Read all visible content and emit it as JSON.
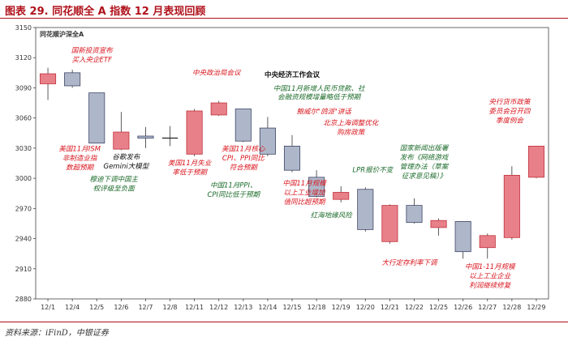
{
  "figure": {
    "title": "图表 29. 同花顺全 A 指数 12 月表现回顾",
    "source": "资料来源：iFinD，中银证券"
  },
  "colors": {
    "up_fill": "#e8808a",
    "up_stroke": "#c0303a",
    "down_fill": "#aeb7c9",
    "down_stroke": "#3d4566",
    "annotation_red": "#d9141c",
    "annotation_green": "#1b6b2a",
    "annotation_black": "#111111",
    "brand": "#b0121b"
  },
  "chart_data": {
    "type": "candlestick",
    "series_label": "同花顺沪深全A",
    "ylim": [
      2880,
      3150
    ],
    "yticks": [
      2880,
      2910,
      2940,
      2970,
      3000,
      3030,
      3060,
      3090,
      3120,
      3150
    ],
    "candles": [
      {
        "date": "12/1",
        "open": 3094,
        "close": 3104,
        "high": 3110,
        "low": 3078
      },
      {
        "date": "12/4",
        "open": 3105,
        "close": 3092,
        "high": 3108,
        "low": 3090
      },
      {
        "date": "12/5",
        "open": 3085,
        "close": 3035,
        "high": 3085,
        "low": 3035
      },
      {
        "date": "12/6",
        "open": 3029,
        "close": 3046,
        "high": 3066,
        "low": 3028
      },
      {
        "date": "12/7",
        "open": 3042,
        "close": 3040,
        "high": 3051,
        "low": 3030
      },
      {
        "date": "12/8",
        "open": 3040,
        "close": 3039,
        "high": 3052,
        "low": 3032
      },
      {
        "date": "12/11",
        "open": 3024,
        "close": 3067,
        "high": 3069,
        "low": 3022
      },
      {
        "date": "12/12",
        "open": 3063,
        "close": 3075,
        "high": 3077,
        "low": 3062
      },
      {
        "date": "12/13",
        "open": 3069,
        "close": 3037,
        "high": 3069,
        "low": 3036
      },
      {
        "date": "12/14",
        "open": 3050,
        "close": 3024,
        "high": 3061,
        "low": 3022
      },
      {
        "date": "12/15",
        "open": 3032,
        "close": 3008,
        "high": 3043,
        "low": 3006
      },
      {
        "date": "12/18",
        "open": 3001,
        "close": 2982,
        "high": 3008,
        "low": 2981
      },
      {
        "date": "12/19",
        "open": 2979,
        "close": 2986,
        "high": 2992,
        "low": 2976
      },
      {
        "date": "12/20",
        "open": 2989,
        "close": 2949,
        "high": 2991,
        "low": 2947
      },
      {
        "date": "12/21",
        "open": 2937,
        "close": 2973,
        "high": 2974,
        "low": 2935
      },
      {
        "date": "12/22",
        "open": 2973,
        "close": 2956,
        "high": 2980,
        "low": 2955
      },
      {
        "date": "12/25",
        "open": 2951,
        "close": 2958,
        "high": 2960,
        "low": 2943
      },
      {
        "date": "12/26",
        "open": 2957,
        "close": 2927,
        "high": 2957,
        "low": 2920
      },
      {
        "date": "12/27",
        "open": 2931,
        "close": 2943,
        "high": 2945,
        "low": 2920
      },
      {
        "date": "12/28",
        "open": 2941,
        "close": 3003,
        "high": 3012,
        "low": 2939
      },
      {
        "date": "12/29",
        "open": 3001,
        "close": 3032,
        "high": 3032,
        "low": 3000
      }
    ],
    "annotations": [
      {
        "text": "国新投资宣布\n买入央企ETF",
        "color": "red",
        "i": 1.8,
        "y": 3125,
        "align": "middle"
      },
      {
        "text": "中央政治局会议",
        "color": "red",
        "i": 6.9,
        "y": 3103,
        "align": "middle"
      },
      {
        "text": "中央经济工作会议",
        "color": "black",
        "i": 10,
        "y": 3101,
        "align": "middle",
        "big": true
      },
      {
        "text": "中国11月新增人民币贷款、社\n会融资规模增量略低于预期",
        "color": "green",
        "i": 11.1,
        "y": 3087,
        "align": "middle",
        "small": true
      },
      {
        "text": "鲍威尔\"鸽派\"讲话",
        "color": "red",
        "i": 11.3,
        "y": 3064,
        "align": "middle"
      },
      {
        "text": "北京上海调整优化\n购房政策",
        "color": "red",
        "i": 12.4,
        "y": 3053,
        "align": "middle"
      },
      {
        "text": "美国11月ISM\n非制造业指\n数超预期",
        "color": "red",
        "i": 1.3,
        "y": 3027,
        "align": "middle"
      },
      {
        "text": "谷歌发布\nGemini大模型",
        "color": "black",
        "i": 3.2,
        "y": 3019,
        "align": "middle"
      },
      {
        "text": "穆迪下调中国主\n权评级至负面",
        "color": "green",
        "i": 2.7,
        "y": 2997,
        "align": "middle"
      },
      {
        "text": "美国11月失业\n率低于预期",
        "color": "red",
        "i": 5.8,
        "y": 3013,
        "align": "middle"
      },
      {
        "text": "美国11月核心\nCPI、PPI同比\n符合预期",
        "color": "red",
        "i": 8.0,
        "y": 3027,
        "align": "middle"
      },
      {
        "text": "中国11月PPI、\nCPI同比低于预期",
        "color": "green",
        "i": 7.6,
        "y": 2991,
        "align": "middle"
      },
      {
        "text": "中国11月规模\n以上工业增加\n值同比超预期",
        "color": "red",
        "i": 10.5,
        "y": 2993,
        "align": "middle"
      },
      {
        "text": "LPR报价不变",
        "color": "green",
        "i": 13.3,
        "y": 3006,
        "align": "middle"
      },
      {
        "text": "国家新闻出版署\n发布《网络游戏\n管理办法（草案\n征求意见稿）》",
        "color": "green",
        "i": 15.4,
        "y": 3028,
        "align": "middle"
      },
      {
        "text": "红海地缘风险",
        "color": "green",
        "i": 11.6,
        "y": 2961,
        "align": "middle"
      },
      {
        "text": "大行定存利率下调",
        "color": "red",
        "i": 14.8,
        "y": 2914,
        "align": "middle"
      },
      {
        "text": "中国1-11月规模\n以上工业企业\n利润继续修复",
        "color": "red",
        "i": 18.1,
        "y": 2910,
        "align": "middle"
      },
      {
        "text": "央行货币政策\n委员会召开四\n季度例会",
        "color": "red",
        "i": 18.9,
        "y": 3074,
        "align": "middle"
      }
    ]
  }
}
